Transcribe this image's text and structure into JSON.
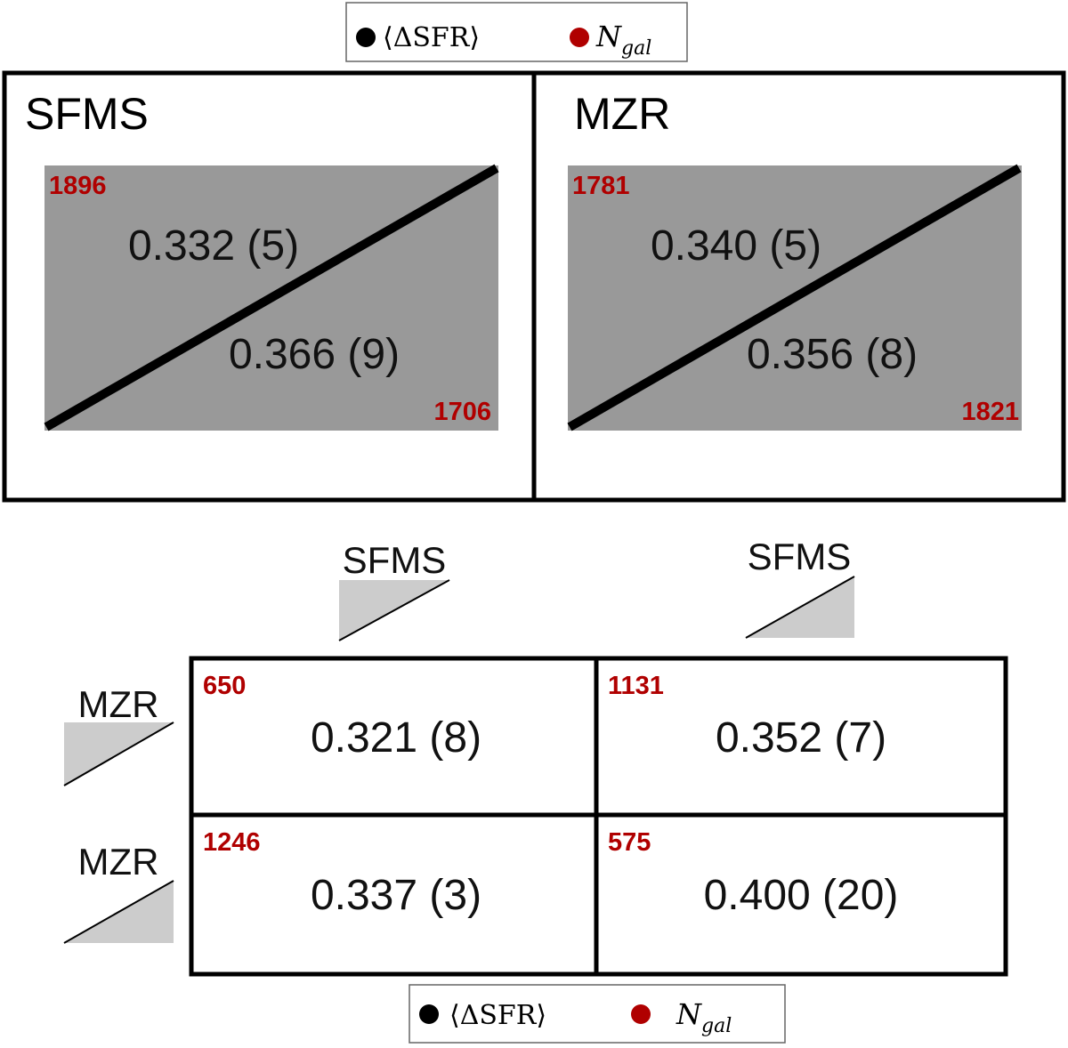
{
  "legend": {
    "items": [
      {
        "label": "⟨ΔSFR⟩",
        "color": "#000000"
      },
      {
        "label": "N",
        "subscript": "gal",
        "color": "#b00000"
      }
    ]
  },
  "top_panels": [
    {
      "title": "SFMS",
      "upper_count": 1896,
      "upper_value": "0.332 (5)",
      "lower_value": "0.366 (9)",
      "lower_count": 1706
    },
    {
      "title": "MZR",
      "upper_count": 1781,
      "upper_value": "0.340 (5)",
      "lower_value": "0.356 (8)",
      "lower_count": 1821
    }
  ],
  "grid": {
    "column_headers": [
      "SFMS",
      "SFMS"
    ],
    "row_headers": [
      "MZR",
      "MZR"
    ],
    "cells": [
      [
        {
          "count": 650,
          "value": "0.321 (8)"
        },
        {
          "count": 1131,
          "value": "0.352 (7)"
        }
      ],
      [
        {
          "count": 1246,
          "value": "0.337 (3)"
        },
        {
          "count": 575,
          "value": "0.400 (20)"
        }
      ]
    ]
  }
}
